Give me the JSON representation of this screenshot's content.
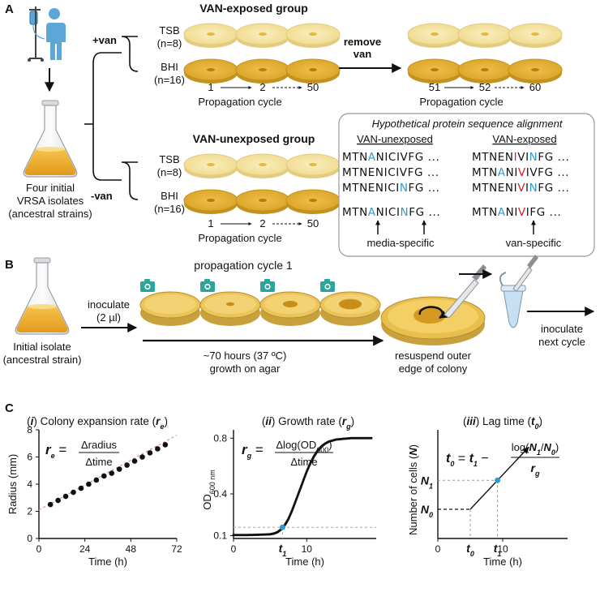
{
  "panel_a": {
    "letter": "A",
    "plus_van": "+van",
    "minus_van": "-van",
    "isolates_line1": "Four initial",
    "isolates_line2": "VRSA isolates",
    "isolates_line3": "(ancestral strains)",
    "exposed_title": "VAN-exposed group",
    "unexposed_title": "VAN-unexposed group",
    "tsb": "TSB",
    "tsb_n": "(n=8)",
    "bhi": "BHI",
    "bhi_n": "(n=16)",
    "cycles_left": [
      "1",
      "2",
      "50"
    ],
    "cycles_right": [
      "51",
      "52",
      "60"
    ],
    "propagation_cycle": "Propagation cycle",
    "remove_van_1": "remove",
    "remove_van_2": "van",
    "alignment": {
      "title": "Hypothetical protein sequence alignment",
      "col_unexposed": "VAN-unexposed",
      "col_exposed": "VAN-exposed",
      "rows_unexposed": [
        [
          "MTN",
          "A",
          "NICIVFG ..."
        ],
        [
          "MTNENICIVFG ...",
          "",
          ""
        ],
        [
          "MTNENICI",
          "N",
          "FG ..."
        ]
      ],
      "rows_exposed": [
        [
          "MTNEN",
          "I",
          "V",
          "I",
          "N",
          "FG ..."
        ],
        [
          "MTN",
          "A",
          "NI",
          "V",
          "IVFG ..."
        ],
        [
          "MTNENI",
          "V",
          "I",
          "N",
          "FG ..."
        ]
      ],
      "consensus_unexposed": [
        "MTN",
        "A",
        "NIC",
        "I",
        "N",
        "FG ..."
      ],
      "consensus_exposed": [
        "MTN",
        "A",
        "NI",
        "V",
        "I",
        "FG ..."
      ],
      "label_media": "media-specific",
      "label_van": "van-specific",
      "colors": {
        "blue": "#2f9ad0",
        "red": "#d0202a"
      }
    }
  },
  "panel_b": {
    "letter": "B",
    "propagation_title": "propagation cycle 1",
    "inoculate": "inoculate",
    "inoculate_vol": "(2 µl)",
    "initial_isolate": "Initial isolate",
    "ancestral": "(ancestral strain)",
    "growth_time": "~70 hours (37 ºC)",
    "growth_on": "growth on agar",
    "resuspend_1": "resuspend outer",
    "resuspend_2": "edge of colony",
    "next_1": "inoculate",
    "next_2": "next cycle"
  },
  "panel_c": {
    "letter": "C",
    "chart_data": [
      {
        "type": "scatter",
        "title": "(i) Colony expansion rate (re)",
        "xlabel": "Time (h)",
        "ylabel": "Radius (mm)",
        "formula_lhs": "re",
        "formula_num": "Δradius",
        "formula_den": "Δtime",
        "xlim": [
          0,
          72
        ],
        "ylim": [
          0,
          8
        ],
        "xticks": [
          "0",
          "24",
          "48",
          "72"
        ],
        "yticks": [
          "0",
          "2",
          "4",
          "6",
          "8"
        ],
        "x": [
          6,
          10,
          14,
          18,
          22,
          26,
          30,
          34,
          38,
          42,
          46,
          50,
          54,
          58,
          62,
          66
        ],
        "y": [
          2.5,
          2.8,
          3.1,
          3.4,
          3.7,
          4.0,
          4.3,
          4.6,
          4.8,
          5.1,
          5.4,
          5.7,
          6.0,
          6.3,
          6.6,
          6.9
        ],
        "trend_line": {
          "x": [
            0,
            72
          ],
          "y": [
            2.1,
            7.6
          ]
        }
      },
      {
        "type": "line",
        "title": "(ii) Growth rate (rg)",
        "xlabel": "Time (h)",
        "ylabel": "OD600 nm",
        "formula_lhs": "rg",
        "formula_num": "Δlog(OD600)",
        "formula_den": "Δtime",
        "xlim": [
          0,
          19.5
        ],
        "ylim": [
          0.08,
          0.86
        ],
        "xticks": [
          "0",
          "10"
        ],
        "yticks": [
          "0.1",
          "0.4",
          "0.8"
        ],
        "t1_label": "t1",
        "t1": 6.7,
        "threshold": 0.16,
        "x": [
          0,
          1,
          2,
          3,
          4,
          5,
          5.5,
          6,
          6.5,
          7,
          7.5,
          8,
          8.5,
          9,
          9.5,
          10,
          10.5,
          11,
          11.5,
          12,
          12.5,
          13,
          14,
          15,
          16,
          17,
          18,
          19
        ],
        "y": [
          0.105,
          0.105,
          0.105,
          0.106,
          0.108,
          0.11,
          0.115,
          0.125,
          0.145,
          0.175,
          0.22,
          0.28,
          0.35,
          0.42,
          0.49,
          0.56,
          0.62,
          0.67,
          0.71,
          0.74,
          0.76,
          0.775,
          0.79,
          0.795,
          0.8,
          0.8,
          0.8,
          0.8
        ]
      },
      {
        "type": "line",
        "title": "(iii) Lag time (t0)",
        "xlabel": "Time (h)",
        "ylabel": "Number of cells (N)",
        "formula_lhs": "t0",
        "formula_rhs_t1": "t1",
        "formula_num": "log(N1/N0)",
        "formula_den": "rg",
        "xticks": [
          "0",
          "10"
        ],
        "x_labels": [
          "t0",
          "t1"
        ],
        "y_labels": [
          "N0",
          "N1"
        ],
        "x": [
          0,
          5,
          14
        ],
        "y": [
          0,
          0,
          4.5
        ]
      }
    ]
  }
}
